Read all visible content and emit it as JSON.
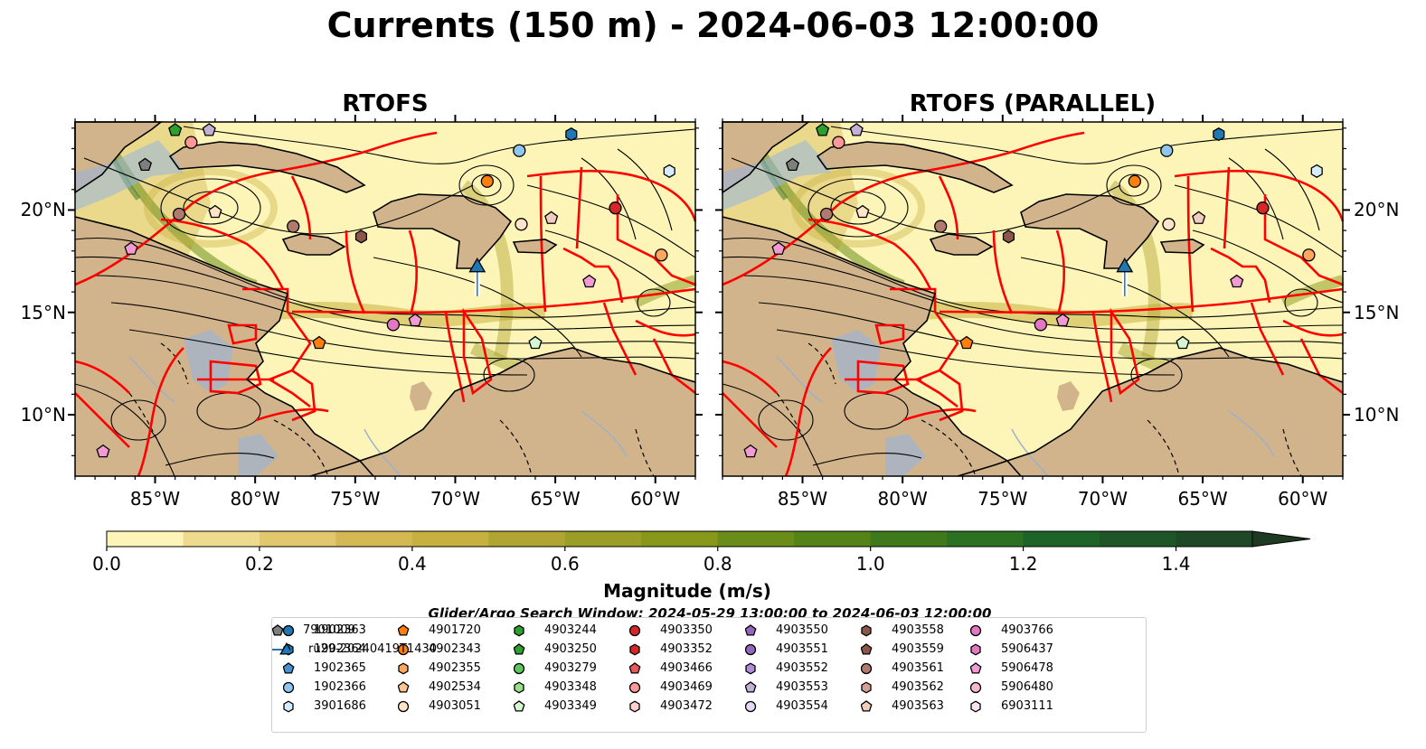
{
  "title": "Currents (150 m) - 2024-06-03 12:00:00",
  "panels": [
    {
      "title": "RTOFS"
    },
    {
      "title": "RTOFS (PARALLEL)"
    }
  ],
  "map": {
    "lon_range": [
      -89,
      -58
    ],
    "lat_range": [
      7,
      24.3
    ],
    "lon_ticks": [
      "85°W",
      "80°W",
      "75°W",
      "70°W",
      "65°W",
      "60°W"
    ],
    "lon_tick_values": [
      -85,
      -80,
      -75,
      -70,
      -65,
      -60
    ],
    "lat_ticks": [
      "20°N",
      "15°N",
      "10°N"
    ],
    "lat_tick_values": [
      20,
      15,
      10
    ],
    "colors": {
      "ocean_shelf": "#94b4e0",
      "land": "#d2b48c",
      "eez": "#ff0000",
      "current_low": "#fdf5b8"
    }
  },
  "colorbar": {
    "label": "Magnitude (m/s)",
    "ticks": [
      "0.0",
      "0.2",
      "0.4",
      "0.6",
      "0.8",
      "1.0",
      "1.2",
      "1.4"
    ],
    "tick_values": [
      0.0,
      0.2,
      0.4,
      0.6,
      0.8,
      1.0,
      1.2,
      1.4
    ],
    "min": 0.0,
    "max": 1.6,
    "step": 0.1,
    "colors": [
      "#fdf5b8",
      "#efdb8e",
      "#e1c86e",
      "#d4b854",
      "#c6b040",
      "#b0a532",
      "#9a9d26",
      "#86971a",
      "#6a8c18",
      "#548418",
      "#3e7a1c",
      "#2c7022",
      "#1e6428",
      "#1e5628",
      "#1e4826",
      "#1f3a22"
    ]
  },
  "search_window": "Glider/Argo Search Window: 2024-05-29 13:00:00 to 2024-06-03 12:00:00",
  "legend": {
    "items": [
      {
        "label": "1902363",
        "marker": "circle",
        "color": "#1f77b4"
      },
      {
        "label": "1902364",
        "marker": "hexagon",
        "color": "#1f77b4"
      },
      {
        "label": "1902365",
        "marker": "pentagon",
        "color": "#4a90d0"
      },
      {
        "label": "1902366",
        "marker": "circle",
        "color": "#8ec6ee"
      },
      {
        "label": "3901686",
        "marker": "hexagon",
        "color": "#d4ecfb"
      },
      {
        "label": "4901720",
        "marker": "pentagon",
        "color": "#ff7f0e"
      },
      {
        "label": "4902343",
        "marker": "circle",
        "color": "#ff7f0e"
      },
      {
        "label": "4902355",
        "marker": "hexagon",
        "color": "#ffa660"
      },
      {
        "label": "4902534",
        "marker": "pentagon",
        "color": "#ffc58f"
      },
      {
        "label": "4903051",
        "marker": "circle",
        "color": "#ffe4c8"
      },
      {
        "label": "4903244",
        "marker": "hexagon",
        "color": "#2ca02c"
      },
      {
        "label": "4903250",
        "marker": "pentagon",
        "color": "#2ca02c"
      },
      {
        "label": "4903279",
        "marker": "circle",
        "color": "#5cc85c"
      },
      {
        "label": "4903348",
        "marker": "hexagon",
        "color": "#98df8a"
      },
      {
        "label": "4903349",
        "marker": "pentagon",
        "color": "#d6f5d0"
      },
      {
        "label": "4903350",
        "marker": "circle",
        "color": "#d62728"
      },
      {
        "label": "4903352",
        "marker": "hexagon",
        "color": "#d62728"
      },
      {
        "label": "4903466",
        "marker": "pentagon",
        "color": "#e8575a"
      },
      {
        "label": "4903469",
        "marker": "circle",
        "color": "#ff9896"
      },
      {
        "label": "4903472",
        "marker": "hexagon",
        "color": "#ffd0cc"
      },
      {
        "label": "4903550",
        "marker": "pentagon",
        "color": "#9467bd"
      },
      {
        "label": "4903551",
        "marker": "circle",
        "color": "#9467bd"
      },
      {
        "label": "4903552",
        "marker": "hexagon",
        "color": "#b08dd6"
      },
      {
        "label": "4903553",
        "marker": "pentagon",
        "color": "#c5b0d5"
      },
      {
        "label": "4903554",
        "marker": "circle",
        "color": "#e5d8f0"
      },
      {
        "label": "4903558",
        "marker": "hexagon",
        "color": "#8c564b"
      },
      {
        "label": "4903559",
        "marker": "pentagon",
        "color": "#8c564b"
      },
      {
        "label": "4903561",
        "marker": "circle",
        "color": "#b07a6e"
      },
      {
        "label": "4903562",
        "marker": "hexagon",
        "color": "#d5a090"
      },
      {
        "label": "4903563",
        "marker": "pentagon",
        "color": "#f0cdbf"
      },
      {
        "label": "4903766",
        "marker": "circle",
        "color": "#e377c2"
      },
      {
        "label": "5906437",
        "marker": "hexagon",
        "color": "#e377c2"
      },
      {
        "label": "5906478",
        "marker": "pentagon",
        "color": "#f29ad4"
      },
      {
        "label": "5906480",
        "marker": "circle",
        "color": "#f7b6d2"
      },
      {
        "label": "6903111",
        "marker": "hexagon",
        "color": "#fde3f2"
      },
      {
        "label": "7901009",
        "marker": "pentagon",
        "color": "#7f7f7f"
      },
      {
        "label": "ru29-20240419T1430",
        "marker": "triangle-line",
        "color": "#1f77b4"
      }
    ]
  },
  "floats": [
    {
      "lon": -83.2,
      "lat": 23.3,
      "color": "#ff9896",
      "marker": "circle"
    },
    {
      "lon": -82.3,
      "lat": 23.9,
      "color": "#c5b0d5",
      "marker": "pentagon"
    },
    {
      "lon": -84.0,
      "lat": 23.9,
      "color": "#2ca02c",
      "marker": "pentagon"
    },
    {
      "lon": -85.5,
      "lat": 22.2,
      "color": "#7f7f7f",
      "marker": "pentagon"
    },
    {
      "lon": -83.8,
      "lat": 19.8,
      "color": "#b07a6e",
      "marker": "circle"
    },
    {
      "lon": -82.0,
      "lat": 19.9,
      "color": "#ffe4c8",
      "marker": "pentagon"
    },
    {
      "lon": -86.2,
      "lat": 18.1,
      "color": "#f29ad4",
      "marker": "pentagon"
    },
    {
      "lon": -78.1,
      "lat": 19.2,
      "color": "#b07a6e",
      "marker": "circle"
    },
    {
      "lon": -74.7,
      "lat": 18.7,
      "color": "#8c564b",
      "marker": "hexagon"
    },
    {
      "lon": -68.4,
      "lat": 21.4,
      "color": "#ff7f0e",
      "marker": "circle"
    },
    {
      "lon": -66.8,
      "lat": 22.9,
      "color": "#8ec6ee",
      "marker": "circle"
    },
    {
      "lon": -64.2,
      "lat": 23.7,
      "color": "#1f77b4",
      "marker": "hexagon"
    },
    {
      "lon": -59.3,
      "lat": 21.9,
      "color": "#d4ecfb",
      "marker": "hexagon"
    },
    {
      "lon": -66.7,
      "lat": 19.3,
      "color": "#ffe4c8",
      "marker": "circle"
    },
    {
      "lon": -65.2,
      "lat": 19.6,
      "color": "#f0cdbf",
      "marker": "pentagon"
    },
    {
      "lon": -62.0,
      "lat": 20.1,
      "color": "#d62728",
      "marker": "circle"
    },
    {
      "lon": -59.7,
      "lat": 17.8,
      "color": "#ffa660",
      "marker": "circle"
    },
    {
      "lon": -63.3,
      "lat": 16.5,
      "color": "#f29ad4",
      "marker": "pentagon"
    },
    {
      "lon": -73.1,
      "lat": 14.4,
      "color": "#e377c2",
      "marker": "circle"
    },
    {
      "lon": -72.0,
      "lat": 14.6,
      "color": "#f29ad4",
      "marker": "pentagon"
    },
    {
      "lon": -76.8,
      "lat": 13.5,
      "color": "#ff7f0e",
      "marker": "pentagon"
    },
    {
      "lon": -66.0,
      "lat": 13.5,
      "color": "#d6f5d0",
      "marker": "pentagon"
    },
    {
      "lon": -87.6,
      "lat": 8.2,
      "color": "#f29ad4",
      "marker": "pentagon"
    }
  ],
  "glider": {
    "lon": -68.9,
    "lat": 17.2,
    "color": "#1f77b4"
  }
}
